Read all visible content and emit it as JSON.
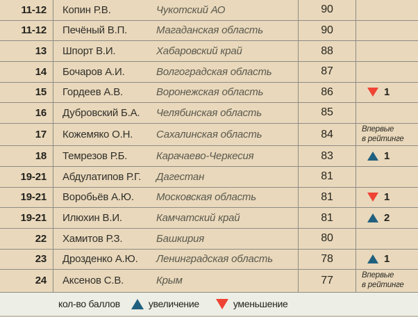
{
  "colors": {
    "row_bg": "#e9d8bb",
    "legend_bg": "#edeee5",
    "line": "#8d8b86",
    "up_blue": "#20607f",
    "down_red": "#ef4334"
  },
  "chart_data": {
    "type": "table",
    "rows": [
      {
        "rank": "11-12",
        "name": "Копин Р.В.",
        "region": "Чукотский АО",
        "score": "90",
        "change_type": "none",
        "change_value": ""
      },
      {
        "rank": "11-12",
        "name": "Печёный В.П.",
        "region": "Магаданская область",
        "score": "90",
        "change_type": "none",
        "change_value": ""
      },
      {
        "rank": "13",
        "name": "Шпорт В.И.",
        "region": "Хабаровский край",
        "score": "88",
        "change_type": "none",
        "change_value": ""
      },
      {
        "rank": "14",
        "name": "Бочаров А.И.",
        "region": "Волгоградская область",
        "score": "87",
        "change_type": "none",
        "change_value": ""
      },
      {
        "rank": "15",
        "name": "Гордеев А.В.",
        "region": "Воронежская область",
        "score": "86",
        "change_type": "down",
        "change_value": "1"
      },
      {
        "rank": "16",
        "name": "Дубровский Б.А.",
        "region": "Челябинская область",
        "score": "85",
        "change_type": "none",
        "change_value": ""
      },
      {
        "rank": "17",
        "name": "Кожемяко О.Н.",
        "region": "Сахалинская область",
        "score": "84",
        "change_type": "first",
        "change_value": "Впервые\nв рейтинге"
      },
      {
        "rank": "18",
        "name": "Темрезов Р.Б.",
        "region": "Карачаево-Черкесия",
        "score": "83",
        "change_type": "up",
        "change_value": "1"
      },
      {
        "rank": "19-21",
        "name": "Абдулатипов Р.Г.",
        "region": "Дагестан",
        "score": "81",
        "change_type": "none",
        "change_value": ""
      },
      {
        "rank": "19-21",
        "name": "Воробьёв А.Ю.",
        "region": "Московская область",
        "score": "81",
        "change_type": "down",
        "change_value": "1"
      },
      {
        "rank": "19-21",
        "name": "Илюхин В.И.",
        "region": "Камчатский край",
        "score": "81",
        "change_type": "up",
        "change_value": "2"
      },
      {
        "rank": "22",
        "name": "Хамитов Р.З.",
        "region": "Башкирия",
        "score": "80",
        "change_type": "none",
        "change_value": ""
      },
      {
        "rank": "23",
        "name": "Дрозденко А.Ю.",
        "region": "Ленинградская область",
        "score": "78",
        "change_type": "up",
        "change_value": "1"
      },
      {
        "rank": "24",
        "name": "Аксенов С.В.",
        "region": "Крым",
        "score": "77",
        "change_type": "first",
        "change_value": "Впервые\nв рейтинге"
      }
    ]
  },
  "legend": {
    "score_label": "кол-во баллов",
    "up_label": "увеличение",
    "down_label": "уменьшение"
  }
}
